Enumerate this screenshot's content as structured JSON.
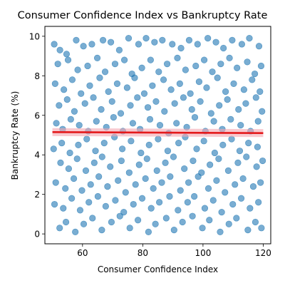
{
  "chart_data": {
    "type": "scatter",
    "title": "Consumer Confidence Index vs Bankruptcy Rate",
    "xlabel": "Consumer Confidence Index",
    "ylabel": "Bankruptcy Rate (%)",
    "xlim": [
      47.5,
      122.5
    ],
    "ylim": [
      -0.5,
      10.5
    ],
    "xticks": [
      60,
      80,
      100,
      120
    ],
    "yticks": [
      0,
      2,
      4,
      6,
      8,
      10
    ],
    "grid": false,
    "legend": "none",
    "point_color": "#1f77b4",
    "point_alpha": 0.6,
    "fit_line_color": "#e41a1c",
    "fit_band_color": "#f4a6b0",
    "fit_line": {
      "x": [
        50,
        120
      ],
      "y": [
        5.15,
        5.1
      ]
    },
    "points": [
      [
        50.6,
        9.6
      ],
      [
        52.5,
        9.3
      ],
      [
        54.7,
        9.1
      ],
      [
        57.9,
        9.8
      ],
      [
        60.3,
        9.5
      ],
      [
        63.1,
        9.6
      ],
      [
        66.8,
        9.8
      ],
      [
        69.4,
        9.7
      ],
      [
        72.2,
        9.3
      ],
      [
        75.3,
        9.9
      ],
      [
        78.6,
        9.6
      ],
      [
        81.1,
        9.9
      ],
      [
        83.9,
        9.7
      ],
      [
        86.5,
        9.8
      ],
      [
        89.8,
        9.6
      ],
      [
        92.7,
        9.4
      ],
      [
        95.4,
        9.8
      ],
      [
        98.2,
        9.6
      ],
      [
        101.6,
        9.9
      ],
      [
        104.3,
        9.7
      ],
      [
        106.8,
        9.4
      ],
      [
        109.7,
        9.8
      ],
      [
        112.9,
        9.6
      ],
      [
        115.4,
        9.9
      ],
      [
        118.6,
        9.5
      ],
      [
        51.8,
        8.6
      ],
      [
        55.2,
        8.8
      ],
      [
        58.4,
        8.3
      ],
      [
        61.7,
        8.5
      ],
      [
        64.9,
        8.9
      ],
      [
        67.5,
        8.2
      ],
      [
        70.8,
        8.6
      ],
      [
        73.9,
        8.8
      ],
      [
        76.4,
        8.1
      ],
      [
        79.7,
        8.4
      ],
      [
        82.6,
        8.8
      ],
      [
        85.3,
        8.2
      ],
      [
        88.1,
        8.6
      ],
      [
        91.5,
        8.9
      ],
      [
        94.2,
        8.3
      ],
      [
        97.6,
        8.5
      ],
      [
        100.4,
        8.8
      ],
      [
        103.1,
        8.2
      ],
      [
        105.9,
        8.6
      ],
      [
        108.8,
        8.9
      ],
      [
        111.3,
        8.4
      ],
      [
        114.7,
        8.7
      ],
      [
        117.2,
        8.1
      ],
      [
        119.3,
        8.5
      ],
      [
        50.9,
        7.6
      ],
      [
        53.8,
        7.3
      ],
      [
        56.6,
        7.8
      ],
      [
        59.5,
        7.1
      ],
      [
        62.4,
        7.5
      ],
      [
        65.7,
        7.9
      ],
      [
        68.6,
        7.2
      ],
      [
        71.5,
        7.6
      ],
      [
        74.8,
        7.4
      ],
      [
        77.3,
        7.9
      ],
      [
        80.5,
        7.1
      ],
      [
        83.2,
        7.5
      ],
      [
        86.9,
        7.8
      ],
      [
        89.4,
        7.3
      ],
      [
        92.3,
        7.6
      ],
      [
        95.8,
        7.1
      ],
      [
        98.7,
        7.7
      ],
      [
        101.2,
        7.4
      ],
      [
        104.8,
        7.9
      ],
      [
        107.5,
        7.2
      ],
      [
        110.2,
        7.6
      ],
      [
        113.6,
        7.3
      ],
      [
        116.3,
        7.8
      ],
      [
        118.9,
        7.2
      ],
      [
        52.2,
        6.5
      ],
      [
        54.9,
        6.8
      ],
      [
        57.3,
        6.2
      ],
      [
        60.8,
        6.6
      ],
      [
        63.6,
        6.9
      ],
      [
        66.2,
        6.3
      ],
      [
        69.8,
        6.7
      ],
      [
        72.7,
        6.1
      ],
      [
        75.9,
        6.5
      ],
      [
        78.2,
        6.9
      ],
      [
        81.7,
        6.4
      ],
      [
        84.4,
        6.7
      ],
      [
        87.2,
        6.2
      ],
      [
        90.6,
        6.6
      ],
      [
        93.5,
        6.9
      ],
      [
        96.3,
        6.3
      ],
      [
        99.1,
        6.7
      ],
      [
        102.7,
        6.1
      ],
      [
        105.4,
        6.5
      ],
      [
        108.1,
        6.8
      ],
      [
        111.8,
        6.3
      ],
      [
        114.2,
        6.6
      ],
      [
        117.6,
        6.9
      ],
      [
        119.6,
        6.2
      ],
      [
        51.3,
        5.6
      ],
      [
        53.4,
        5.3
      ],
      [
        56.1,
        5.8
      ],
      [
        58.9,
        5.5
      ],
      [
        61.9,
        5.2
      ],
      [
        64.6,
        5.7
      ],
      [
        67.9,
        5.4
      ],
      [
        70.3,
        5.9
      ],
      [
        73.4,
        5.2
      ],
      [
        76.7,
        5.6
      ],
      [
        79.1,
        5.3
      ],
      [
        82.4,
        5.8
      ],
      [
        85.7,
        5.5
      ],
      [
        88.6,
        5.1
      ],
      [
        91.2,
        5.6
      ],
      [
        94.6,
        5.4
      ],
      [
        97.3,
        5.9
      ],
      [
        100.8,
        5.2
      ],
      [
        103.6,
        5.7
      ],
      [
        106.4,
        5.3
      ],
      [
        109.2,
        5.8
      ],
      [
        112.5,
        5.5
      ],
      [
        115.8,
        5.2
      ],
      [
        118.3,
        5.7
      ],
      [
        50.4,
        4.3
      ],
      [
        53.1,
        4.6
      ],
      [
        55.8,
        4.1
      ],
      [
        58.6,
        4.5
      ],
      [
        61.4,
        4.8
      ],
      [
        64.3,
        4.2
      ],
      [
        67.2,
        4.6
      ],
      [
        70.6,
        4.9
      ],
      [
        73.2,
        4.3
      ],
      [
        76.1,
        4.7
      ],
      [
        79.4,
        4.1
      ],
      [
        82.1,
        4.5
      ],
      [
        85.1,
        4.8
      ],
      [
        88.3,
        4.2
      ],
      [
        91.9,
        4.6
      ],
      [
        94.1,
        4.9
      ],
      [
        97.9,
        4.3
      ],
      [
        100.3,
        4.7
      ],
      [
        103.9,
        4.1
      ],
      [
        106.6,
        4.5
      ],
      [
        109.5,
        4.8
      ],
      [
        112.2,
        4.2
      ],
      [
        115.1,
        4.6
      ],
      [
        118.1,
        4.4
      ],
      [
        52.7,
        3.6
      ],
      [
        55.4,
        3.3
      ],
      [
        58.2,
        3.8
      ],
      [
        61.1,
        3.2
      ],
      [
        63.9,
        3.6
      ],
      [
        66.5,
        3.9
      ],
      [
        69.2,
        3.4
      ],
      [
        72.9,
        3.7
      ],
      [
        75.5,
        3.1
      ],
      [
        78.8,
        3.5
      ],
      [
        81.4,
        3.8
      ],
      [
        84.7,
        3.2
      ],
      [
        87.5,
        3.6
      ],
      [
        90.2,
        3.9
      ],
      [
        93.8,
        3.3
      ],
      [
        96.7,
        3.7
      ],
      [
        99.5,
        3.1
      ],
      [
        102.3,
        3.5
      ],
      [
        105.2,
        3.8
      ],
      [
        108.4,
        3.2
      ],
      [
        111.6,
        3.6
      ],
      [
        114.4,
        3.9
      ],
      [
        117.8,
        3.4
      ],
      [
        119.8,
        3.7
      ],
      [
        51.1,
        2.6
      ],
      [
        54.3,
        2.3
      ],
      [
        57.1,
        2.8
      ],
      [
        59.8,
        2.2
      ],
      [
        62.7,
        2.5
      ],
      [
        65.4,
        2.9
      ],
      [
        68.3,
        2.4
      ],
      [
        71.8,
        2.7
      ],
      [
        74.3,
        2.1
      ],
      [
        77.6,
        2.5
      ],
      [
        80.9,
        2.8
      ],
      [
        83.5,
        2.3
      ],
      [
        86.3,
        2.6
      ],
      [
        89.1,
        2.9
      ],
      [
        92.5,
        2.2
      ],
      [
        95.2,
        2.6
      ],
      [
        98.4,
        2.9
      ],
      [
        101.8,
        2.3
      ],
      [
        104.5,
        2.7
      ],
      [
        107.3,
        2.1
      ],
      [
        110.6,
        2.5
      ],
      [
        113.3,
        2.8
      ],
      [
        116.7,
        2.4
      ],
      [
        119.1,
        2.6
      ],
      [
        50.7,
        1.5
      ],
      [
        53.6,
        1.3
      ],
      [
        56.4,
        1.8
      ],
      [
        59.2,
        1.2
      ],
      [
        62.1,
        1.6
      ],
      [
        65.1,
        1.9
      ],
      [
        67.7,
        1.4
      ],
      [
        70.9,
        1.7
      ],
      [
        73.7,
        1.1
      ],
      [
        76.9,
        1.5
      ],
      [
        79.8,
        1.8
      ],
      [
        82.8,
        1.3
      ],
      [
        85.5,
        1.6
      ],
      [
        88.9,
        1.9
      ],
      [
        91.7,
        1.2
      ],
      [
        94.9,
        1.6
      ],
      [
        97.1,
        1.9
      ],
      [
        100.6,
        1.3
      ],
      [
        103.4,
        1.7
      ],
      [
        106.2,
        1.1
      ],
      [
        109.9,
        1.5
      ],
      [
        112.7,
        1.8
      ],
      [
        115.6,
        1.3
      ],
      [
        118.4,
        1.6
      ],
      [
        52.4,
        0.3
      ],
      [
        54.5,
        0.6
      ],
      [
        57.6,
        0.1
      ],
      [
        60.4,
        0.5
      ],
      [
        63.3,
        0.8
      ],
      [
        66.4,
        0.2
      ],
      [
        69.6,
        0.6
      ],
      [
        72.4,
        0.9
      ],
      [
        75.7,
        0.3
      ],
      [
        78.4,
        0.7
      ],
      [
        81.9,
        0.1
      ],
      [
        84.2,
        0.5
      ],
      [
        87.8,
        0.8
      ],
      [
        90.4,
        0.2
      ],
      [
        93.2,
        0.6
      ],
      [
        96.5,
        0.9
      ],
      [
        99.8,
        0.3
      ],
      [
        102.1,
        0.7
      ],
      [
        105.7,
        0.1
      ],
      [
        108.6,
        0.5
      ],
      [
        111.1,
        0.8
      ],
      [
        114.9,
        0.2
      ],
      [
        117.4,
        0.6
      ],
      [
        119.4,
        0.3
      ]
    ]
  }
}
